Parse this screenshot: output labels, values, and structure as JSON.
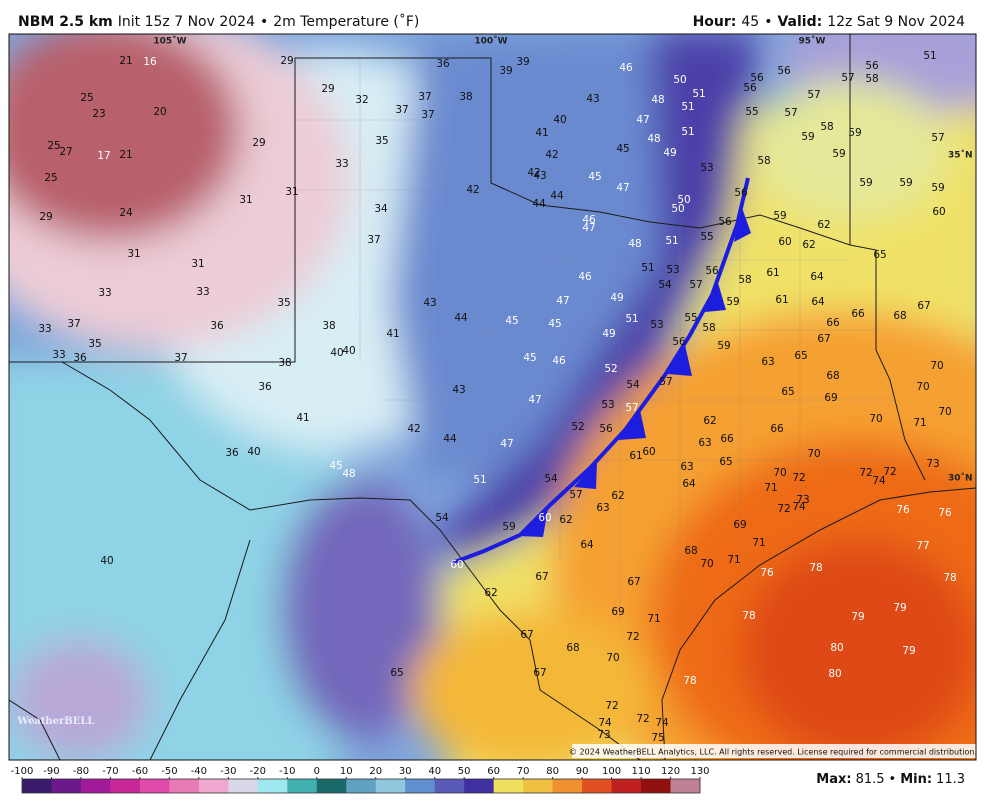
{
  "header": {
    "model": "NBM 2.5 km",
    "init": "Init 15z 7 Nov 2024",
    "separator": "•",
    "field": "2m Temperature (˚F)",
    "hour_label": "Hour:",
    "hour": 45,
    "valid_label": "Valid:",
    "valid": "12z Sat 9 Nov 2024"
  },
  "map": {
    "lon_labels": [
      "105˚W",
      "100˚W",
      "95˚W"
    ],
    "lat_labels": [
      "35˚N",
      "30˚N"
    ],
    "temperatures": [
      21,
      16,
      29,
      36,
      39,
      39,
      46,
      50,
      56,
      56,
      56,
      57,
      58,
      51,
      25,
      23,
      20,
      29,
      32,
      37,
      38,
      37,
      37,
      43,
      48,
      51,
      56,
      55,
      57,
      57,
      25,
      27,
      17,
      21,
      29,
      35,
      33,
      40,
      41,
      47,
      51,
      51,
      48,
      45,
      42,
      49,
      53,
      58,
      58,
      59,
      59,
      59,
      57,
      25,
      29,
      24,
      31,
      31,
      34,
      42,
      42,
      43,
      45,
      47,
      44,
      44,
      50,
      50,
      56,
      59,
      59,
      59,
      60,
      46,
      47,
      56,
      55,
      51,
      48,
      59,
      62,
      31,
      31,
      37,
      60,
      62,
      65,
      33,
      33,
      51,
      53,
      56,
      46,
      54,
      57,
      58,
      61,
      64,
      35,
      43,
      44,
      45,
      47,
      49,
      45,
      59,
      61,
      64,
      67,
      66,
      68,
      33,
      37,
      36,
      38,
      41,
      51,
      53,
      55,
      58,
      49,
      66,
      67,
      35,
      33,
      36,
      37,
      38,
      40,
      40,
      45,
      46,
      56,
      59,
      63,
      65,
      70,
      52,
      54,
      57,
      36,
      43,
      68,
      70,
      65,
      69,
      47,
      53,
      57,
      41,
      70,
      70,
      71,
      62,
      52,
      56,
      42,
      44,
      47,
      66,
      63,
      66,
      61,
      60,
      70,
      36,
      40,
      73,
      45,
      48,
      63,
      65,
      70,
      72,
      72,
      74,
      72,
      51,
      54,
      64,
      71,
      57,
      62,
      73,
      72,
      74,
      63,
      54,
      76,
      76,
      59,
      60,
      62,
      69,
      64,
      77,
      71,
      68,
      70,
      71,
      76,
      78,
      40,
      60,
      67,
      67,
      78,
      62,
      69,
      71,
      78,
      79,
      79,
      67,
      72,
      68,
      70,
      80,
      79,
      65,
      67,
      80,
      78,
      72,
      74,
      72,
      74,
      73,
      75
    ],
    "logo": "WeatherBELL",
    "copyright": "© 2024 WeatherBELL Analytics, LLC. All rights reserved. License required for commercial distribution."
  },
  "colorbar": {
    "ticks": [
      -100,
      -90,
      -80,
      -70,
      -60,
      -50,
      -40,
      -30,
      -20,
      -10,
      0,
      10,
      20,
      30,
      40,
      50,
      60,
      70,
      80,
      90,
      100,
      110,
      120,
      130
    ]
  },
  "stats": {
    "max_label": "Max:",
    "max": 81.5,
    "separator": "•",
    "min_label": "Min:",
    "min": 11.3
  }
}
